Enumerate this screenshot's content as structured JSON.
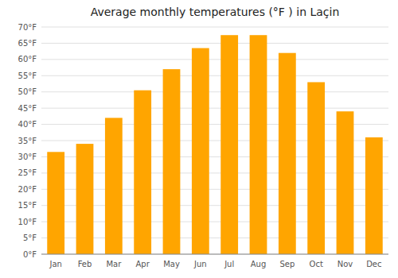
{
  "chart_data": {
    "type": "bar",
    "title": "Average monthly temperatures (°F ) in Laçin",
    "categories": [
      "Jan",
      "Feb",
      "Mar",
      "Apr",
      "May",
      "Jun",
      "Jul",
      "Aug",
      "Sep",
      "Oct",
      "Nov",
      "Dec"
    ],
    "values": [
      31.5,
      34.0,
      42.0,
      50.5,
      57.0,
      63.5,
      67.5,
      67.5,
      62.0,
      53.0,
      44.0,
      36.0
    ],
    "color": "#FFA500",
    "ylim": [
      0,
      70
    ],
    "yticks": [
      {
        "value": 0,
        "label": "0°F"
      },
      {
        "value": 5,
        "label": "5°F"
      },
      {
        "value": 10,
        "label": "10°F"
      },
      {
        "value": 15,
        "label": "15°F"
      },
      {
        "value": 20,
        "label": "20°F"
      },
      {
        "value": 25,
        "label": "25°F"
      },
      {
        "value": 30,
        "label": "30°F"
      },
      {
        "value": 35,
        "label": "35°F"
      },
      {
        "value": 40,
        "label": "40°F"
      },
      {
        "value": 45,
        "label": "45°F"
      },
      {
        "value": 50,
        "label": "50°F"
      },
      {
        "value": 55,
        "label": "55°F"
      },
      {
        "value": 60,
        "label": "60°F"
      },
      {
        "value": 65,
        "label": "65°F"
      },
      {
        "value": 70,
        "label": "70°F"
      }
    ],
    "grid": true
  }
}
